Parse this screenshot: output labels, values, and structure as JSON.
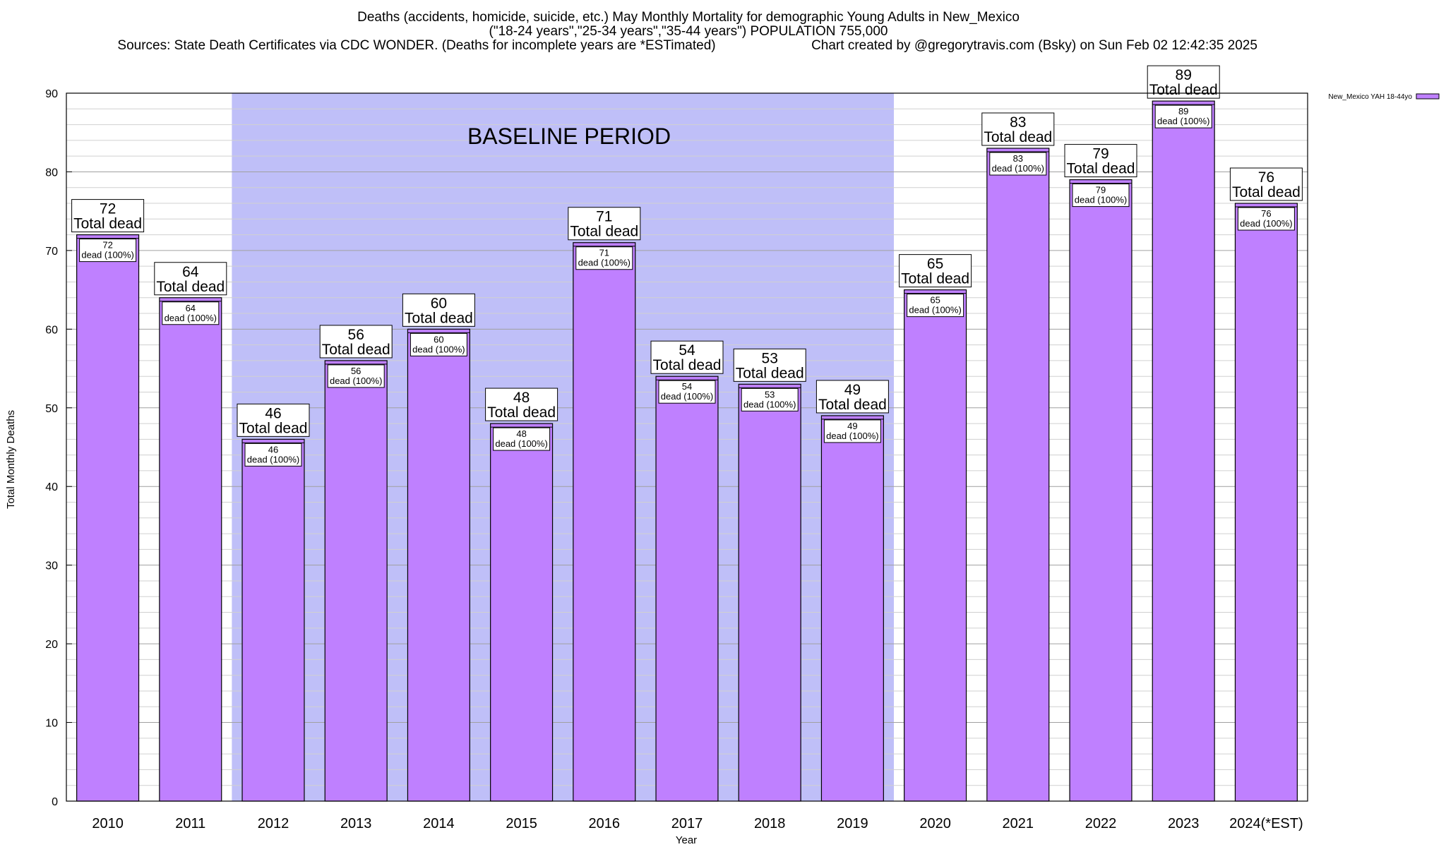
{
  "colors": {
    "bar": "#bf80ff",
    "bar_edge": "#000000",
    "baseline_shade": "#bfbff8",
    "grid_major": "#a0a0a0",
    "grid_minor": "#d0d0d0"
  },
  "chart_data": {
    "type": "bar",
    "title_lines": [
      "Deaths (accidents, homicide, suicide, etc.) May Monthly Mortality for demographic Young Adults in New_Mexico",
      "(\"18-24 years\",\"25-34 years\",\"35-44 years\") POPULATION 755,000"
    ],
    "sources": "Sources: State Death Certificates via CDC WONDER. (Deaths for incomplete years are *ESTimated)",
    "credit": "Chart created by @gregorytravis.com (Bsky) on Sun Feb 02 12:42:35 2025",
    "xlabel": "Year",
    "ylabel": "Total Monthly Deaths",
    "ylim": [
      0,
      90
    ],
    "yticks": [
      0,
      10,
      20,
      30,
      40,
      50,
      60,
      70,
      80,
      90
    ],
    "categories": [
      "2010",
      "2011",
      "2012",
      "2013",
      "2014",
      "2015",
      "2016",
      "2017",
      "2018",
      "2019",
      "2020",
      "2021",
      "2022",
      "2023",
      "2024(*EST)"
    ],
    "series": [
      {
        "name": "New_Mexico YAH 18-44yo",
        "values": [
          72,
          64,
          46,
          56,
          60,
          48,
          71,
          54,
          53,
          49,
          65,
          83,
          79,
          89,
          76
        ]
      }
    ],
    "total_label": "Total dead",
    "bar_label_suffix": "dead (100%)",
    "baseline_label": "BASELINE PERIOD",
    "baseline_range": [
      "2012",
      "2019"
    ],
    "legend_position": "top-right",
    "grid": true
  }
}
